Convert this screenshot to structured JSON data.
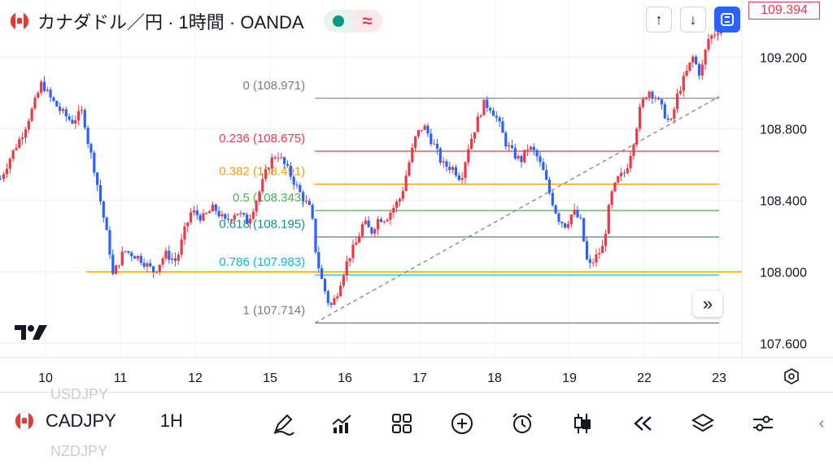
{
  "header": {
    "title": "カナダドル／円 · 1時間 · OANDA",
    "change_icon": "approx-icon"
  },
  "toolbar": {
    "up_icon": "↑",
    "down_icon": "↓",
    "fullscreen_icon": "⛶"
  },
  "current_price": "109.394",
  "scroll_icon": "»",
  "logo_text": "17",
  "bottom_bar": {
    "symbol": "CADJPY",
    "timeframe": "1H",
    "ghost_above": "USDJPY",
    "ghost_below": "NZDJPY",
    "tools": [
      "draw-icon",
      "indicators-icon",
      "layouts-icon",
      "add-icon",
      "alert-icon",
      "candles-icon",
      "replay-icon",
      "layers-icon",
      "settings-icon"
    ]
  },
  "colors": {
    "up": "#f23645",
    "down": "#2962ff",
    "grid": "#eef0f4",
    "text": "#131722"
  },
  "chart_data": {
    "type": "candlestick",
    "title": "カナダドル／円 · 1時間 · OANDA",
    "y_ticks": [
      107.6,
      108.0,
      108.4,
      108.8,
      109.2
    ],
    "y_tick_labels": [
      "107.600",
      "108.000",
      "108.400",
      "108.800",
      "109.200"
    ],
    "ylim": [
      107.52,
      109.43
    ],
    "x_ticks": [
      "10",
      "11",
      "12",
      "15",
      "16",
      "17",
      "18",
      "19",
      "22",
      "23"
    ],
    "x_tick_index": [
      0,
      1,
      2,
      3,
      4,
      5,
      6,
      7,
      8,
      9
    ],
    "fibonacci": {
      "levels": [
        {
          "ratio": "0",
          "price": 108.971,
          "label": "0 (108.971)",
          "color": "#787b86"
        },
        {
          "ratio": "0.236",
          "price": 108.675,
          "label": "0.236 (108.675)",
          "color": "#f23645"
        },
        {
          "ratio": "0.382",
          "price": 108.491,
          "label": "0.382 (108.491)",
          "color": "#ff9800"
        },
        {
          "ratio": "0.5",
          "price": 108.343,
          "label": "0.5 (108.343)",
          "color": "#4caf50"
        },
        {
          "ratio": "0.618",
          "price": 108.195,
          "label": "0.618 (108.195)",
          "color": "#089981"
        },
        {
          "ratio": "0.786",
          "price": 107.983,
          "label": "0.786 (107.983)",
          "color": "#00bcd4"
        },
        {
          "ratio": "1",
          "price": 107.714,
          "label": "1 (107.714)",
          "color": "#787b86"
        }
      ],
      "start_day": 3.6,
      "end_day": 9.0
    },
    "horizontal_line": {
      "price": 108.0,
      "color": "#ff9800",
      "from_day": 0.55
    },
    "trendline": {
      "from": [
        3.6,
        107.714
      ],
      "to": [
        9.0,
        108.98
      ],
      "style": "dashed"
    },
    "price_path": [
      [
        -0.6,
        108.52
      ],
      [
        -0.45,
        108.66
      ],
      [
        -0.3,
        108.78
      ],
      [
        -0.15,
        108.94
      ],
      [
        -0.05,
        109.06
      ],
      [
        0.05,
        108.98
      ],
      [
        0.2,
        108.9
      ],
      [
        0.35,
        108.84
      ],
      [
        0.5,
        108.9
      ],
      [
        0.55,
        108.76
      ],
      [
        0.65,
        108.58
      ],
      [
        0.75,
        108.36
      ],
      [
        0.85,
        108.14
      ],
      [
        0.9,
        107.98
      ],
      [
        1.05,
        108.12
      ],
      [
        1.25,
        108.08
      ],
      [
        1.45,
        108.0
      ],
      [
        1.6,
        108.1
      ],
      [
        1.75,
        108.06
      ],
      [
        1.85,
        108.22
      ],
      [
        1.95,
        108.34
      ],
      [
        2.1,
        108.3
      ],
      [
        2.25,
        108.36
      ],
      [
        2.4,
        108.28
      ],
      [
        2.55,
        108.34
      ],
      [
        2.7,
        108.28
      ],
      [
        2.85,
        108.44
      ],
      [
        3.0,
        108.62
      ],
      [
        3.1,
        108.66
      ],
      [
        3.25,
        108.56
      ],
      [
        3.4,
        108.44
      ],
      [
        3.55,
        108.34
      ],
      [
        3.62,
        108.08
      ],
      [
        3.7,
        107.94
      ],
      [
        3.8,
        107.8
      ],
      [
        3.88,
        107.86
      ],
      [
        3.95,
        107.96
      ],
      [
        4.05,
        108.08
      ],
      [
        4.15,
        108.16
      ],
      [
        4.25,
        108.28
      ],
      [
        4.35,
        108.22
      ],
      [
        4.45,
        108.3
      ],
      [
        4.55,
        108.3
      ],
      [
        4.65,
        108.36
      ],
      [
        4.75,
        108.42
      ],
      [
        4.85,
        108.6
      ],
      [
        4.95,
        108.76
      ],
      [
        5.05,
        108.82
      ],
      [
        5.2,
        108.7
      ],
      [
        5.3,
        108.6
      ],
      [
        5.45,
        108.58
      ],
      [
        5.55,
        108.52
      ],
      [
        5.65,
        108.7
      ],
      [
        5.75,
        108.82
      ],
      [
        5.85,
        108.94
      ],
      [
        5.95,
        108.92
      ],
      [
        6.05,
        108.84
      ],
      [
        6.15,
        108.72
      ],
      [
        6.25,
        108.66
      ],
      [
        6.35,
        108.62
      ],
      [
        6.45,
        108.7
      ],
      [
        6.55,
        108.66
      ],
      [
        6.65,
        108.56
      ],
      [
        6.75,
        108.42
      ],
      [
        6.85,
        108.3
      ],
      [
        6.95,
        108.26
      ],
      [
        7.05,
        108.34
      ],
      [
        7.15,
        108.28
      ],
      [
        7.25,
        108.02
      ],
      [
        7.35,
        108.08
      ],
      [
        7.45,
        108.14
      ],
      [
        7.55,
        108.42
      ],
      [
        7.65,
        108.52
      ],
      [
        7.75,
        108.56
      ],
      [
        7.85,
        108.72
      ],
      [
        7.95,
        108.92
      ],
      [
        8.05,
        109.02
      ],
      [
        8.15,
        108.98
      ],
      [
        8.25,
        108.9
      ],
      [
        8.35,
        108.82
      ],
      [
        8.45,
        109.0
      ],
      [
        8.55,
        109.1
      ],
      [
        8.65,
        109.2
      ],
      [
        8.75,
        109.1
      ],
      [
        8.85,
        109.3
      ],
      [
        9.0,
        109.36
      ],
      [
        9.1,
        109.4
      ]
    ]
  }
}
